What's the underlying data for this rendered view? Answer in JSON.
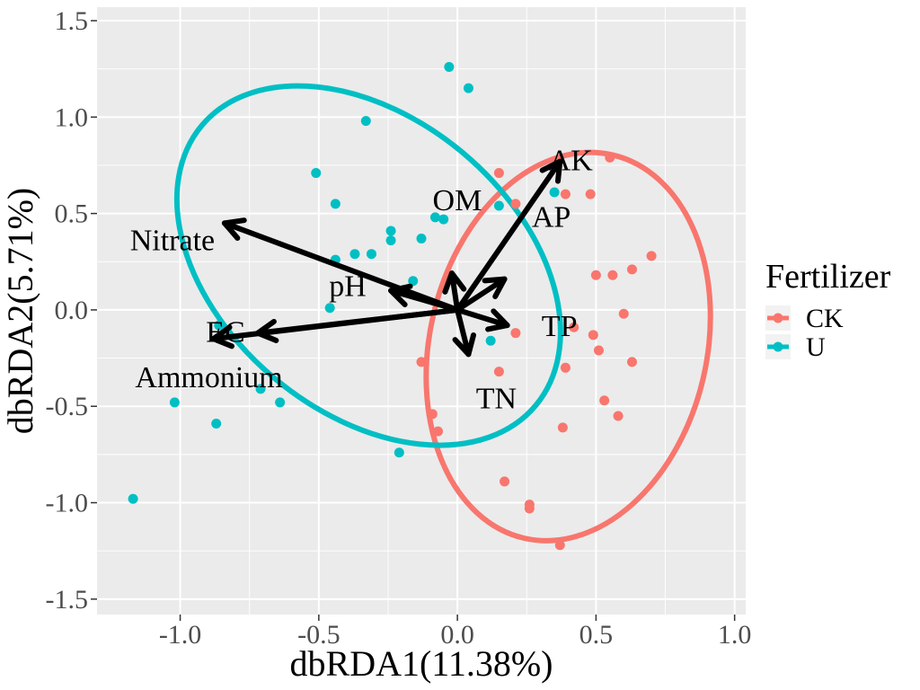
{
  "chart_data": {
    "type": "scatter",
    "xlabel": "dbRDA1(11.38%)",
    "ylabel": "dbRDA2(5.71%)",
    "xlim": [
      -1.3,
      1.04
    ],
    "ylim": [
      -1.58,
      1.57
    ],
    "x_ticks": [
      -1.0,
      -0.5,
      0.0,
      0.5,
      1.0
    ],
    "x_tick_labels": [
      "-1.0",
      "-0.5",
      "0.0",
      "0.5",
      "1.0"
    ],
    "y_ticks": [
      -1.5,
      -1.0,
      -0.5,
      0.0,
      0.5,
      1.0,
      1.5
    ],
    "y_tick_labels": [
      "-1.5",
      "-1.0",
      "-0.5",
      "0.0",
      "0.5",
      "1.0",
      "1.5"
    ],
    "grid": true,
    "legend": {
      "title": "Fertilizer",
      "placement": "right",
      "entries": [
        "CK",
        "U"
      ]
    },
    "series": [
      {
        "name": "CK",
        "color": "#F8766D",
        "points": [
          [
            0.55,
            0.79
          ],
          [
            0.15,
            0.71
          ],
          [
            0.21,
            0.55
          ],
          [
            0.48,
            0.6
          ],
          [
            0.39,
            0.6
          ],
          [
            0.5,
            0.18
          ],
          [
            0.56,
            0.18
          ],
          [
            0.63,
            0.21
          ],
          [
            0.7,
            0.28
          ],
          [
            0.6,
            -0.02
          ],
          [
            0.49,
            -0.13
          ],
          [
            0.21,
            -0.12
          ],
          [
            0.42,
            -0.09
          ],
          [
            0.51,
            -0.21
          ],
          [
            0.63,
            -0.27
          ],
          [
            0.39,
            -0.3
          ],
          [
            0.15,
            -0.32
          ],
          [
            -0.13,
            -0.27
          ],
          [
            0.53,
            -0.47
          ],
          [
            0.58,
            -0.55
          ],
          [
            0.38,
            -0.61
          ],
          [
            -0.09,
            -0.54
          ],
          [
            -0.07,
            -0.63
          ],
          [
            0.17,
            -0.89
          ],
          [
            0.26,
            -1.01
          ],
          [
            0.26,
            -1.03
          ],
          [
            0.37,
            -1.22
          ]
        ],
        "ellipse": {
          "center": [
            0.4,
            -0.19
          ],
          "rx": 0.5,
          "ry": 1.02,
          "rotation_deg": 13
        }
      },
      {
        "name": "U",
        "color": "#00BFC4",
        "points": [
          [
            -0.03,
            1.26
          ],
          [
            0.04,
            1.15
          ],
          [
            -0.33,
            0.98
          ],
          [
            -0.51,
            0.71
          ],
          [
            -0.44,
            0.55
          ],
          [
            0.15,
            0.54
          ],
          [
            0.35,
            0.61
          ],
          [
            -0.08,
            0.48
          ],
          [
            -0.05,
            0.47
          ],
          [
            -0.24,
            0.41
          ],
          [
            -0.24,
            0.36
          ],
          [
            -0.13,
            0.37
          ],
          [
            -0.37,
            0.29
          ],
          [
            -0.31,
            0.29
          ],
          [
            -0.44,
            0.26
          ],
          [
            -0.16,
            0.15
          ],
          [
            -0.46,
            0.01
          ],
          [
            -0.86,
            -0.08
          ],
          [
            0.12,
            -0.16
          ],
          [
            -0.71,
            -0.41
          ],
          [
            -0.64,
            -0.48
          ],
          [
            -1.02,
            -0.48
          ],
          [
            -0.87,
            -0.59
          ],
          [
            -0.21,
            -0.74
          ],
          [
            -1.17,
            -0.98
          ]
        ],
        "ellipse": {
          "center": [
            -0.32,
            0.23
          ],
          "rx": 0.53,
          "ry": 1.13,
          "rotation_deg": -50
        }
      }
    ],
    "arrows": [
      {
        "label": "AK",
        "end": [
          0.37,
          0.77
        ]
      },
      {
        "label": "AP",
        "end": [
          0.17,
          0.16
        ]
      },
      {
        "label": "OM",
        "end": [
          -0.02,
          0.19
        ]
      },
      {
        "label": "Nitrate",
        "end": [
          -0.84,
          0.45
        ]
      },
      {
        "label": "pH",
        "end": [
          -0.24,
          0.1
        ]
      },
      {
        "label": "EC",
        "end": [
          -0.72,
          -0.12
        ]
      },
      {
        "label": "Ammonium",
        "end": [
          -0.88,
          -0.15
        ]
      },
      {
        "label": "TP",
        "end": [
          0.18,
          -0.08
        ]
      },
      {
        "label": "TN",
        "end": [
          0.04,
          -0.23
        ]
      }
    ]
  }
}
